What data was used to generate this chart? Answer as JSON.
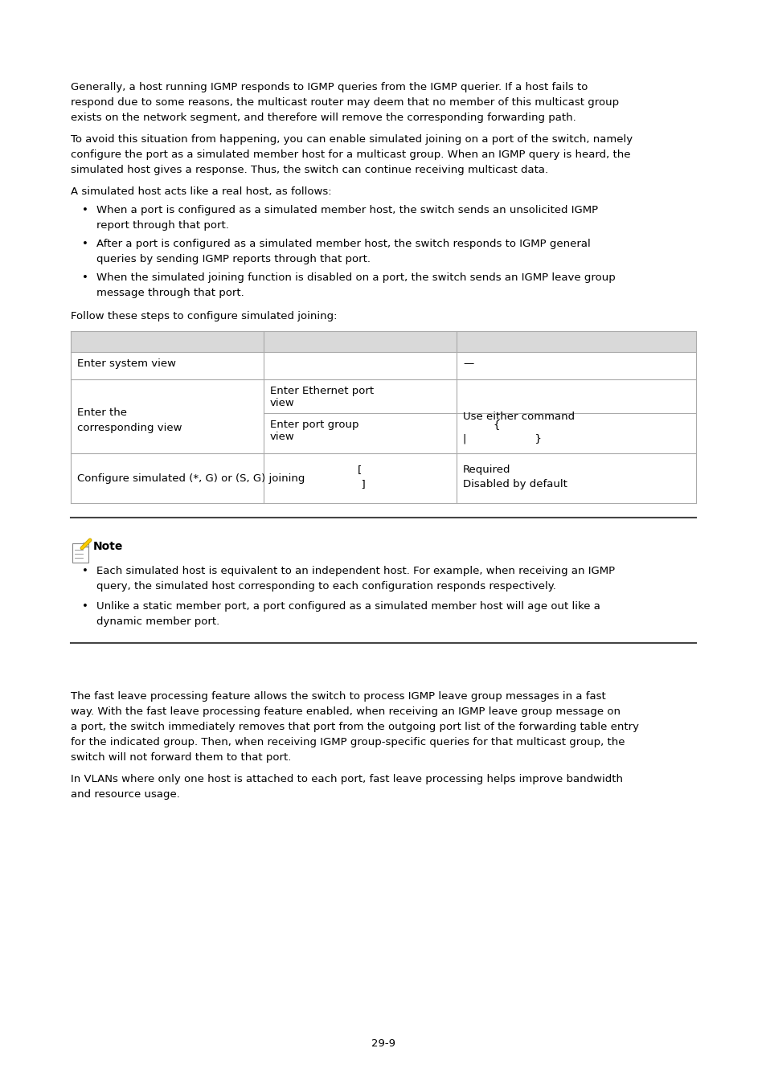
{
  "bg_color": "#ffffff",
  "text_color": "#000000",
  "font_size": 9.5,
  "page_number": "29-9",
  "lines_p1": [
    "Generally, a host running IGMP responds to IGMP queries from the IGMP querier. If a host fails to",
    "respond due to some reasons, the multicast router may deem that no member of this multicast group",
    "exists on the network segment, and therefore will remove the corresponding forwarding path."
  ],
  "lines_p2": [
    "To avoid this situation from happening, you can enable simulated joining on a port of the switch, namely",
    "configure the port as a simulated member host for a multicast group. When an IGMP query is heard, the",
    "simulated host gives a response. Thus, the switch can continue receiving multicast data."
  ],
  "para3": "A simulated host acts like a real host, as follows:",
  "bullet1": [
    "When a port is configured as a simulated member host, the switch sends an unsolicited IGMP",
    "report through that port."
  ],
  "bullet2": [
    "After a port is configured as a simulated member host, the switch responds to IGMP general",
    "queries by sending IGMP reports through that port."
  ],
  "bullet3": [
    "When the simulated joining function is disabled on a port, the switch sends an IGMP leave group",
    "message through that port."
  ],
  "follow_text": "Follow these steps to configure simulated joining:",
  "table_header_bg": "#d9d9d9",
  "table_row1_col1": "Enter system view",
  "table_row1_col3": "—",
  "table_row2_col1": "Enter the\ncorresponding view",
  "table_row2a_col2": "Enter Ethernet port\nview",
  "table_row2b_col2": "Enter port group\nview",
  "table_row2b_col3_l1": "        {",
  "table_row2b_col3_l2": "|                    }",
  "table_row2_col3": "Use either command",
  "table_row3_col1": "Configure simulated (*, G) or (S, G) joining",
  "table_row3_col2_l1": "[",
  "table_row3_col2_l2": "  ]",
  "table_row3_col3_l1": "Required",
  "table_row3_col3_l2": "Disabled by default",
  "note_title": "Note",
  "note_b1": [
    "Each simulated host is equivalent to an independent host. For example, when receiving an IGMP",
    "query, the simulated host corresponding to each configuration responds respectively."
  ],
  "note_b2": [
    "Unlike a static member port, a port configured as a simulated member host will age out like a",
    "dynamic member port."
  ],
  "s2_p1": [
    "The fast leave processing feature allows the switch to process IGMP leave group messages in a fast",
    "way. With the fast leave processing feature enabled, when receiving an IGMP leave group message on",
    "a port, the switch immediately removes that port from the outgoing port list of the forwarding table entry",
    "for the indicated group. Then, when receiving IGMP group-specific queries for that multicast group, the",
    "switch will not forward them to that port."
  ],
  "s2_p2": [
    "In VLANs where only one host is attached to each port, fast leave processing helps improve bandwidth",
    "and resource usage."
  ]
}
